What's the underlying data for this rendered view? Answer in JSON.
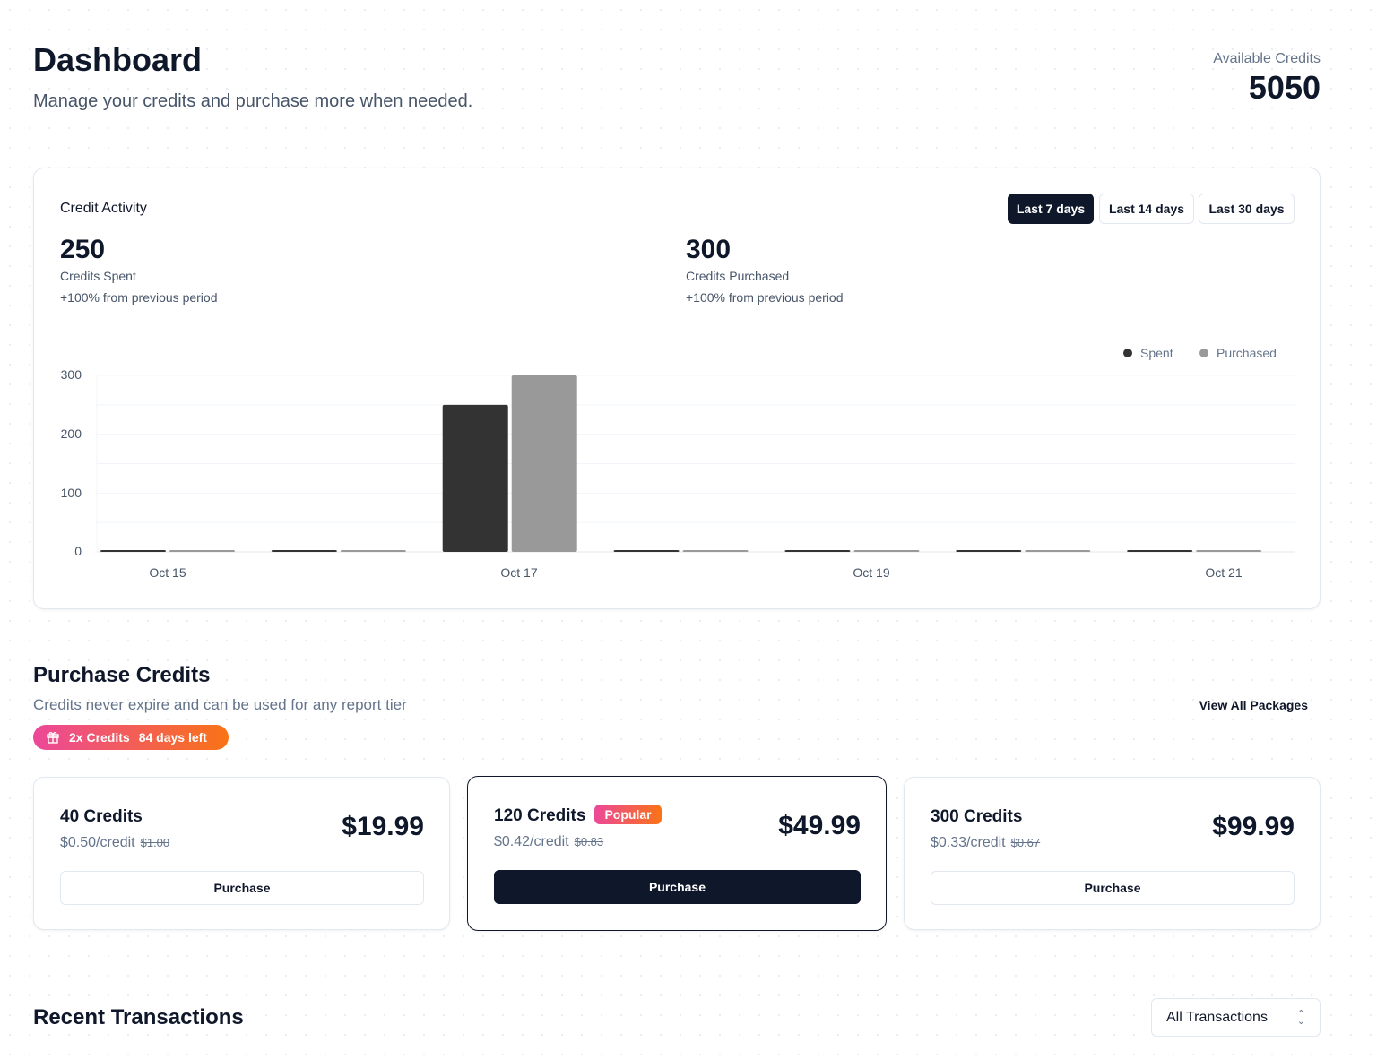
{
  "header": {
    "title": "Dashboard",
    "subtitle": "Manage your credits and purchase more when needed.",
    "credits_label": "Available Credits",
    "credits_value": "5050"
  },
  "activity": {
    "title": "Credit Activity",
    "ranges": [
      "Last 7 days",
      "Last 14 days",
      "Last 30 days"
    ],
    "active_range": 0,
    "spent": {
      "value": "250",
      "label": "Credits Spent",
      "change": "+100% from previous period"
    },
    "purchased": {
      "value": "300",
      "label": "Credits Purchased",
      "change": "+100% from previous period"
    }
  },
  "chart_data": {
    "type": "bar",
    "categories": [
      "Oct 15",
      "Oct 16",
      "Oct 17",
      "Oct 18",
      "Oct 19",
      "Oct 20",
      "Oct 21"
    ],
    "tick_labels": [
      "Oct 15",
      "Oct 17",
      "Oct 19",
      "Oct 21"
    ],
    "series": [
      {
        "name": "Spent",
        "color": "#333333",
        "values": [
          0,
          0,
          250,
          0,
          0,
          0,
          0
        ]
      },
      {
        "name": "Purchased",
        "color": "#999999",
        "values": [
          0,
          0,
          300,
          0,
          0,
          0,
          0
        ]
      }
    ],
    "ylim": [
      0,
      300
    ],
    "yticks": [
      "0",
      "100",
      "200",
      "300"
    ],
    "legend": "top-right",
    "grid": true
  },
  "purchase": {
    "title": "Purchase Credits",
    "subtitle": "Credits never expire and can be used for any report tier",
    "view_all": "View All Packages",
    "promo": {
      "label": "2x Credits",
      "days": "84 days left"
    },
    "packages": [
      {
        "name": "40 Credits",
        "per": "$0.50/credit",
        "old": "$1.00",
        "price": "$19.99",
        "button": "Purchase"
      },
      {
        "name": "120 Credits",
        "badge": "Popular",
        "per": "$0.42/credit",
        "old": "$0.83",
        "price": "$49.99",
        "button": "Purchase"
      },
      {
        "name": "300 Credits",
        "per": "$0.33/credit",
        "old": "$0.67",
        "price": "$99.99",
        "button": "Purchase"
      }
    ]
  },
  "transactions": {
    "title": "Recent Transactions",
    "filter": "All Transactions"
  }
}
